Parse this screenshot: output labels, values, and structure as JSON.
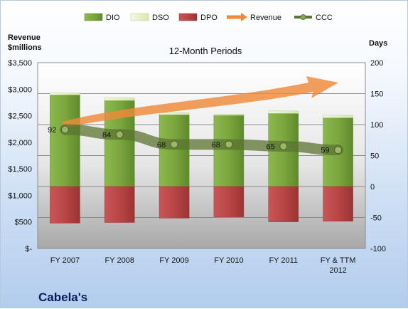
{
  "chart_data": {
    "type": "bar",
    "title": "12-Month Periods",
    "company": "Cabela's",
    "left_axis": {
      "label_line1": "Revenue",
      "label_line2": "$millions",
      "ticks": [
        "$-",
        "$500",
        "$1,000",
        "$1,500",
        "$2,000",
        "$2,500",
        "$3,000",
        "$3,500"
      ],
      "range": [
        0,
        3500
      ]
    },
    "right_axis": {
      "label": "Days",
      "ticks": [
        "-100",
        "-50",
        "0",
        "50",
        "100",
        "150",
        "200"
      ],
      "range": [
        -100,
        200
      ]
    },
    "categories": [
      {
        "line1": "FY 2007",
        "line2": ""
      },
      {
        "line1": "FY 2008",
        "line2": ""
      },
      {
        "line1": "FY 2009",
        "line2": ""
      },
      {
        "line1": "FY 2010",
        "line2": ""
      },
      {
        "line1": "FY 2011",
        "line2": ""
      },
      {
        "line1": "FY & TTM",
        "line2": "2012"
      }
    ],
    "series": [
      {
        "name": "DIO",
        "color": "#77a33b",
        "values": [
          148,
          139,
          116,
          115,
          118,
          111
        ]
      },
      {
        "name": "DSO",
        "color": "#e4f1c4",
        "values": [
          3,
          4,
          3,
          2,
          4,
          4
        ]
      },
      {
        "name": "DPO",
        "color": "#bf4b4b",
        "values": [
          -59,
          -58,
          -51,
          -49,
          -57,
          -56
        ]
      },
      {
        "name": "Revenue",
        "color": "#ef8a3a",
        "trend": "arrow"
      },
      {
        "name": "CCC",
        "color": "#5b7431",
        "values": [
          92,
          84,
          68,
          68,
          65,
          59
        ]
      }
    ],
    "ccc_labels": [
      "92",
      "84",
      "68",
      "68",
      "65",
      "59"
    ],
    "grid": true,
    "legend": "top"
  }
}
